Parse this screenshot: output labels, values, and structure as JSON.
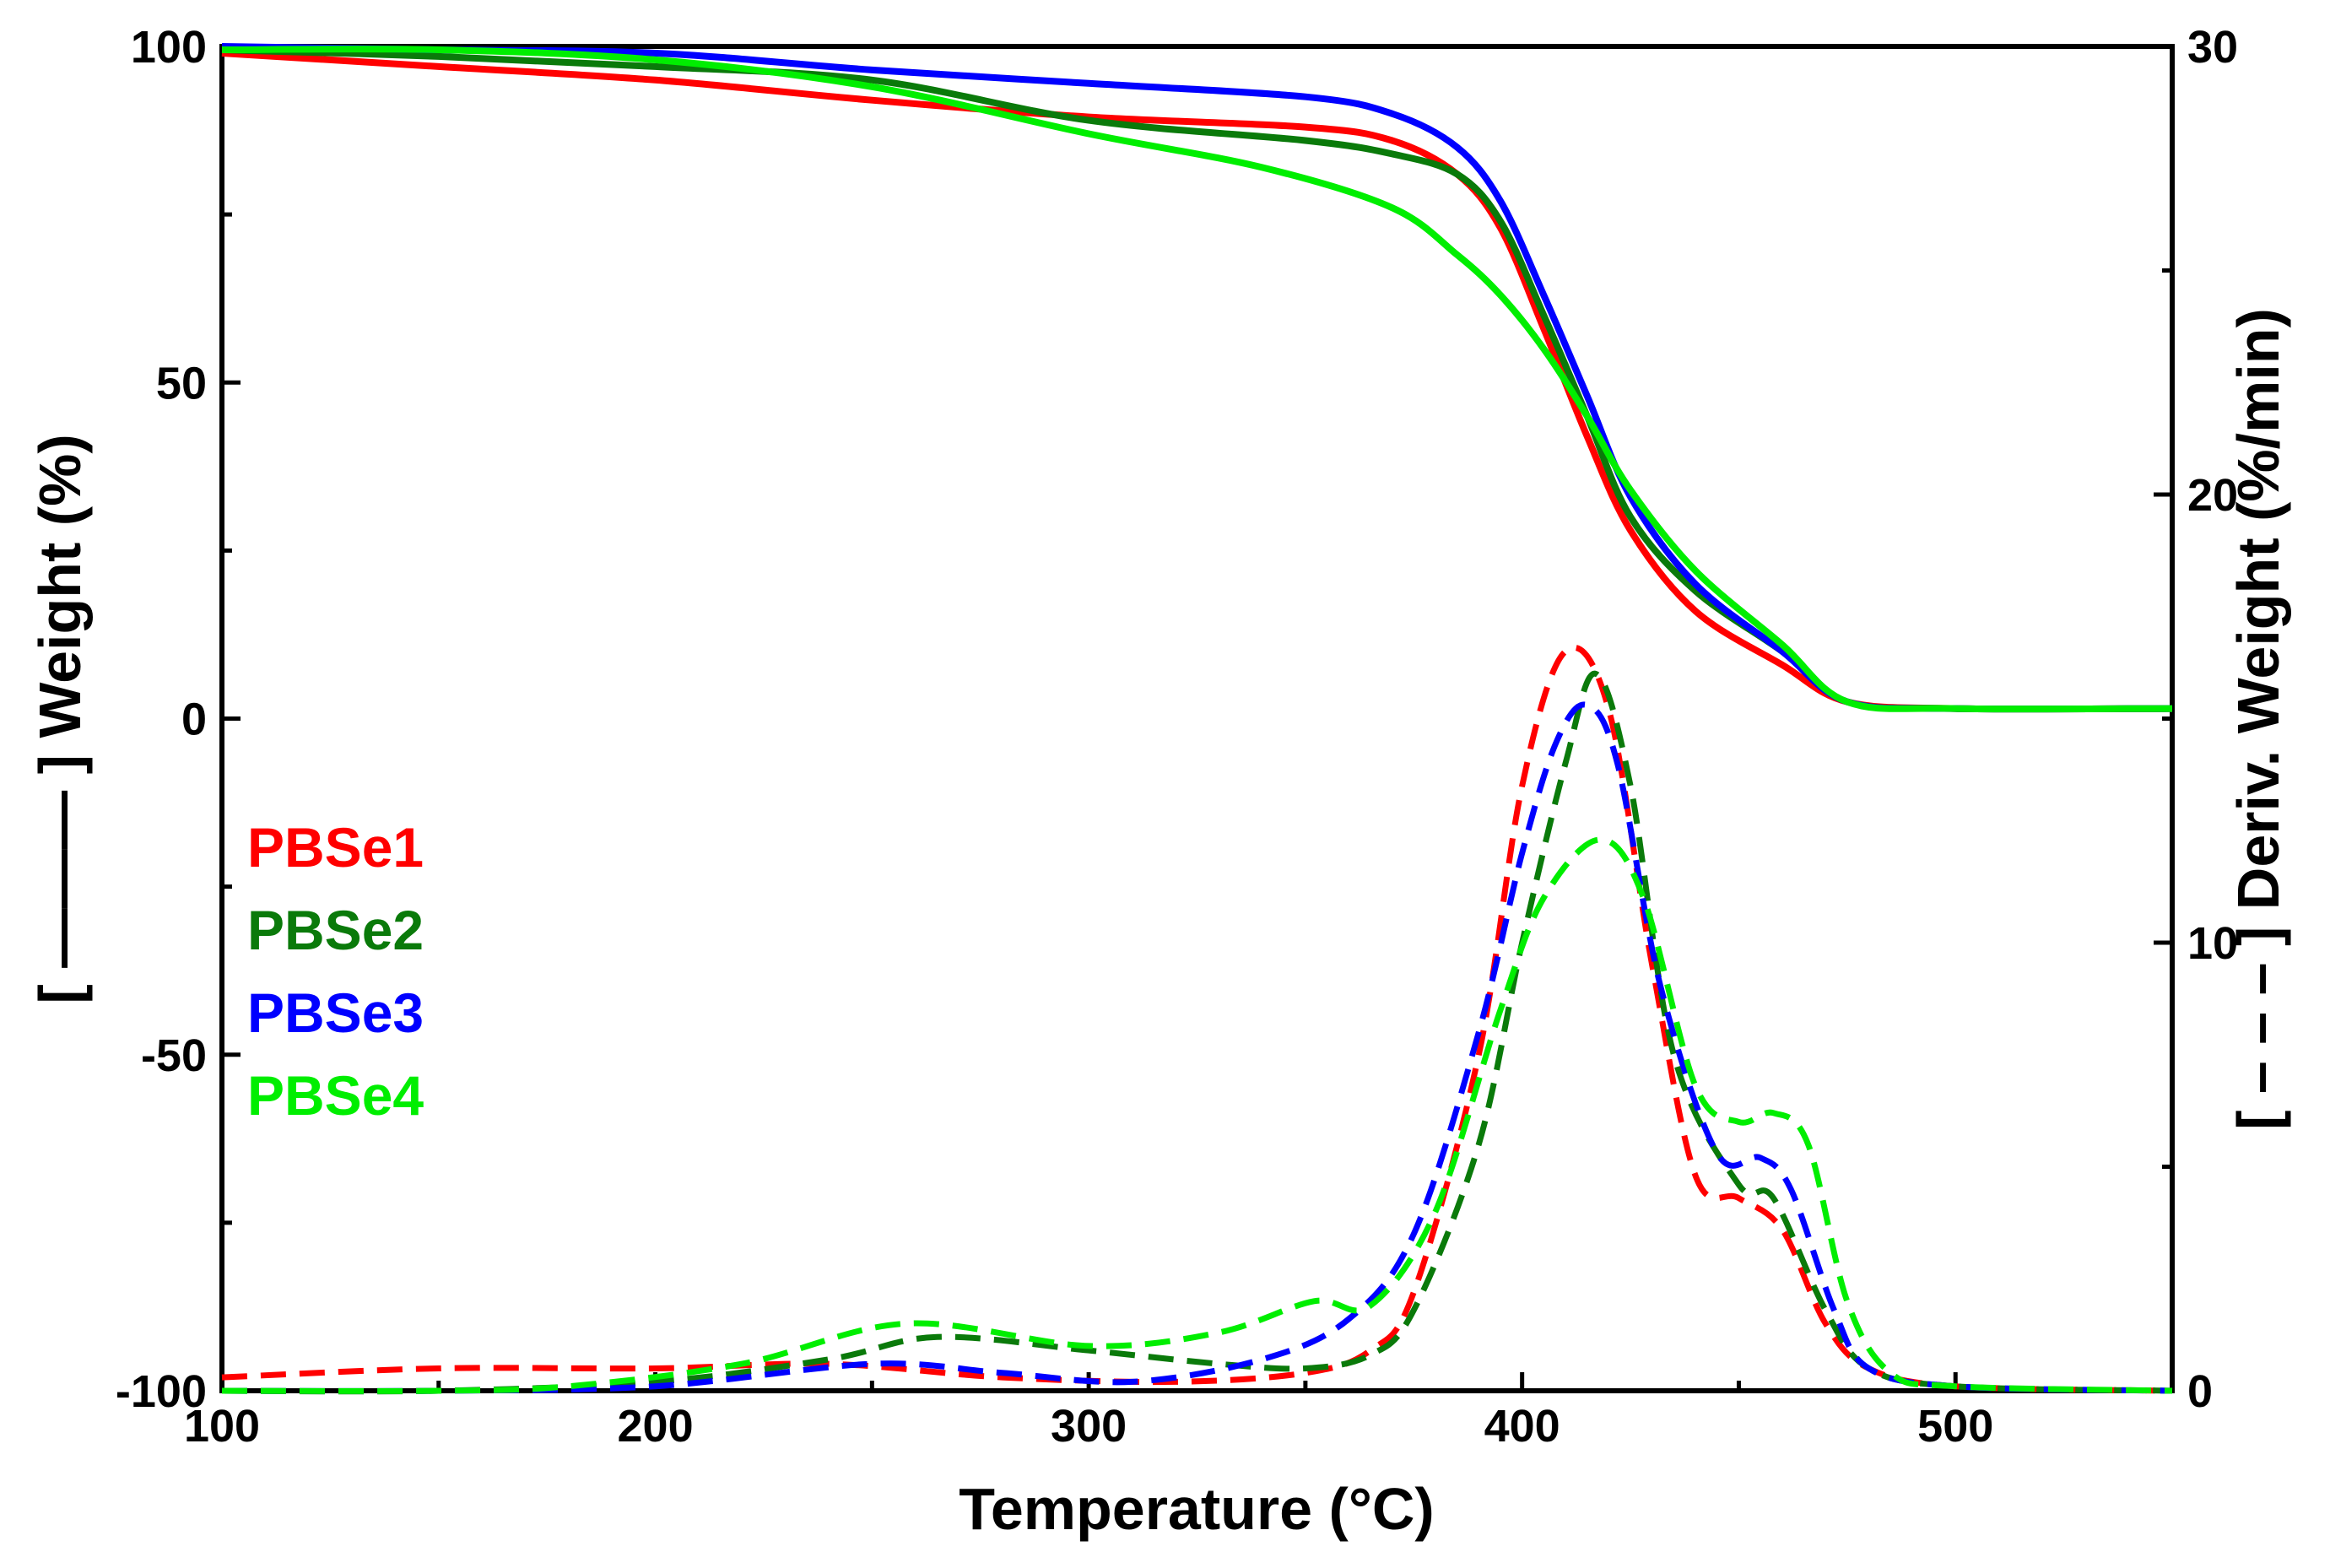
{
  "chart_data": {
    "type": "line",
    "title": "",
    "xlabel": "Temperature (°C)",
    "ylabel_left": "[ ——— ] Weight (%)",
    "ylabel_right": "[ – – – ] Deriv. Weight (%/min)",
    "xlim": [
      100,
      550
    ],
    "ylim_left": [
      -100,
      100
    ],
    "ylim_right": [
      0,
      30
    ],
    "xticks": [
      100,
      200,
      300,
      400,
      500
    ],
    "yticks_left": [
      -100,
      -50,
      0,
      50,
      100
    ],
    "yticks_right": [
      0,
      10,
      20,
      30
    ],
    "grid": false,
    "legend_position": "left-middle",
    "series": [
      {
        "name": "PBSe1",
        "color": "#ff0000",
        "weight": {
          "x": [
            100,
            150,
            200,
            250,
            300,
            350,
            370,
            385,
            395,
            405,
            415,
            425,
            440,
            460,
            475,
            500,
            550
          ],
          "y": [
            99,
            97,
            95,
            92,
            89.5,
            88,
            86,
            81,
            73,
            58,
            42,
            28,
            16,
            8,
            2.5,
            1.5,
            1.5
          ]
        },
        "deriv": {
          "x": [
            100,
            150,
            200,
            240,
            280,
            320,
            350,
            365,
            375,
            390,
            400,
            410,
            420,
            430,
            440,
            450,
            460,
            470,
            480,
            500,
            550
          ],
          "y": [
            0.3,
            0.5,
            0.5,
            0.6,
            0.3,
            0.2,
            0.4,
            0.9,
            2.2,
            7.5,
            13.5,
            16.5,
            15.2,
            9.5,
            4.8,
            4.3,
            3.6,
            1.5,
            0.5,
            0.1,
            0.0
          ]
        }
      },
      {
        "name": "PBSe2",
        "color": "#0a7a0a",
        "weight": {
          "x": [
            100,
            150,
            200,
            250,
            300,
            350,
            370,
            385,
            395,
            405,
            415,
            425,
            440,
            460,
            475,
            500,
            550
          ],
          "y": [
            99.5,
            98.5,
            97,
            95,
            89,
            86,
            84,
            81,
            74,
            60,
            45,
            30,
            19,
            10,
            2.5,
            1.5,
            1.5
          ]
        },
        "deriv": {
          "x": [
            100,
            150,
            200,
            240,
            265,
            300,
            330,
            350,
            365,
            375,
            390,
            400,
            410,
            417,
            425,
            435,
            450,
            458,
            470,
            480,
            500,
            550
          ],
          "y": [
            0.0,
            0.0,
            0.2,
            0.7,
            1.2,
            0.9,
            0.6,
            0.5,
            0.8,
            1.8,
            5.5,
            10,
            14,
            16,
            13.5,
            7.5,
            4.6,
            4.3,
            1.8,
            0.5,
            0.1,
            0.0
          ]
        }
      },
      {
        "name": "PBSe3",
        "color": "#0000ff",
        "weight": {
          "x": [
            100,
            150,
            200,
            250,
            300,
            350,
            370,
            385,
            395,
            405,
            415,
            425,
            440,
            460,
            475,
            500,
            550
          ],
          "y": [
            100,
            99.5,
            99,
            96.5,
            94.5,
            92.5,
            90,
            85,
            77,
            63,
            48,
            33,
            20,
            10,
            2.5,
            1.5,
            1.5
          ]
        },
        "deriv": {
          "x": [
            100,
            150,
            200,
            250,
            280,
            310,
            340,
            360,
            375,
            390,
            400,
            408,
            415,
            422,
            432,
            445,
            455,
            462,
            472,
            480,
            500,
            550
          ],
          "y": [
            0.0,
            0.0,
            0.1,
            0.6,
            0.4,
            0.2,
            0.7,
            1.6,
            3.5,
            8,
            12,
            14.5,
            15.3,
            14,
            9,
            5.3,
            5.2,
            4.5,
            1.8,
            0.5,
            0.1,
            0.0
          ]
        }
      },
      {
        "name": "PBSe4",
        "color": "#00ee00",
        "weight": {
          "x": [
            100,
            150,
            200,
            250,
            300,
            340,
            370,
            385,
            395,
            405,
            415,
            425,
            440,
            460,
            475,
            500,
            550
          ],
          "y": [
            99.5,
            99.5,
            98,
            94,
            87,
            82,
            76,
            69,
            63,
            55,
            45,
            34,
            22,
            11,
            2.5,
            1.5,
            1.5
          ]
        },
        "deriv": {
          "x": [
            100,
            150,
            180,
            220,
            258,
            300,
            330,
            352,
            365,
            380,
            395,
            405,
            418,
            428,
            440,
            450,
            458,
            466,
            475,
            485,
            500,
            550
          ],
          "y": [
            0.0,
            0.0,
            0.1,
            0.6,
            1.5,
            1.0,
            1.3,
            2.0,
            1.9,
            4.0,
            8.5,
            11,
            12.3,
            11,
            6.8,
            6.0,
            6.2,
            5.5,
            2.0,
            0.4,
            0.1,
            0.0
          ]
        }
      }
    ]
  }
}
